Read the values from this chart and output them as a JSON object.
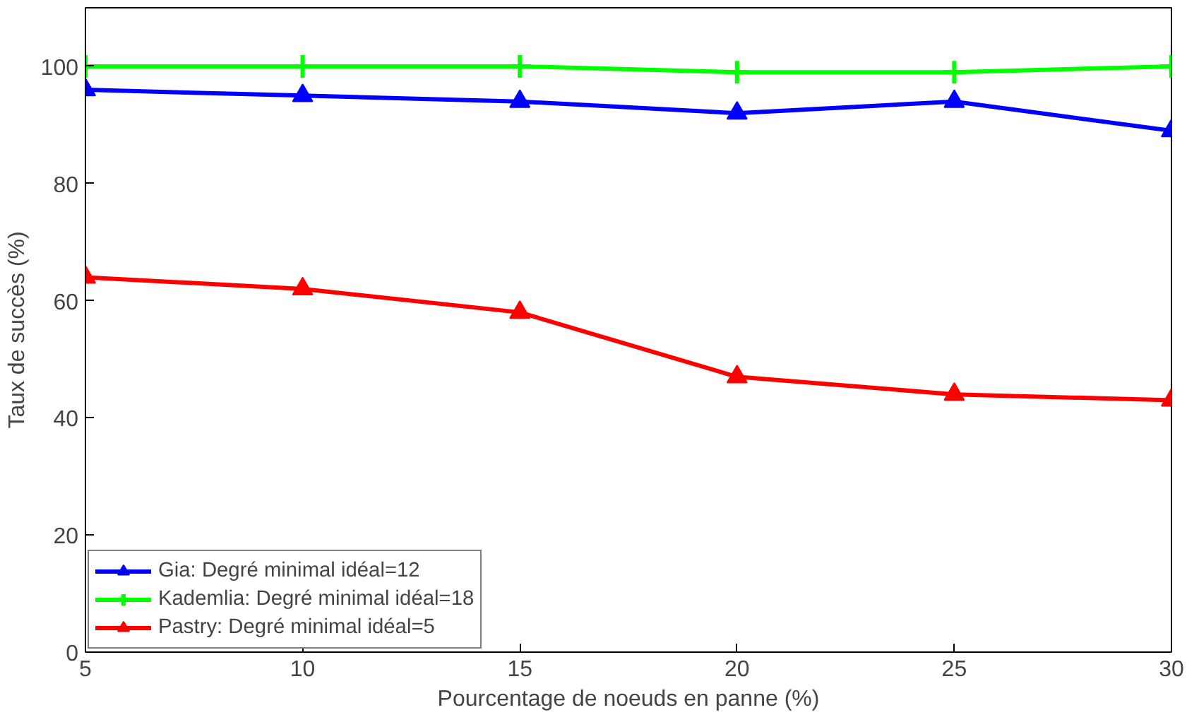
{
  "chart_data": {
    "type": "line",
    "xlabel": "Pourcentage de noeuds en panne (%)",
    "ylabel": "Taux de succès (%)",
    "x": [
      5,
      10,
      15,
      20,
      25,
      30
    ],
    "series": [
      {
        "name": "Gia: Degré minimal idéal=12",
        "color": "#0000ff",
        "marker": "triangle",
        "values": [
          96,
          95,
          94,
          92,
          94,
          89
        ]
      },
      {
        "name": "Kademlia: Degré minimal idéal=18",
        "color": "#00ff00",
        "marker": "cross",
        "values": [
          100,
          100,
          100,
          99,
          99,
          100
        ]
      },
      {
        "name": "Pastry: Degré minimal idéal=5",
        "color": "#ff0000",
        "marker": "triangle",
        "values": [
          64,
          62,
          58,
          47,
          44,
          43
        ]
      }
    ],
    "xlim": [
      5,
      30
    ],
    "xticks": [
      5,
      10,
      15,
      20,
      25,
      30
    ],
    "ylim": [
      0,
      110
    ],
    "yticks": [
      0,
      20,
      40,
      60,
      80,
      100
    ],
    "grid": false,
    "legend": "bottom left",
    "line_style": "solid"
  }
}
